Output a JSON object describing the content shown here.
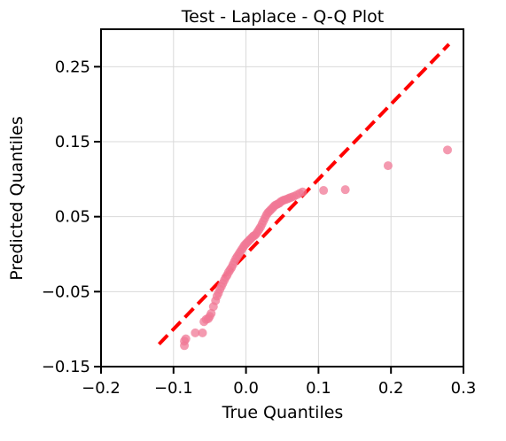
{
  "chart_data": {
    "type": "scatter",
    "title": "Test - Laplace - Q-Q Plot",
    "xlabel": "True Quantiles",
    "ylabel": "Predicted Quantiles",
    "xlim": [
      -0.2,
      0.3
    ],
    "ylim": [
      -0.15,
      0.3
    ],
    "xticks": [
      -0.2,
      -0.1,
      0.0,
      0.1,
      0.2,
      0.3
    ],
    "xtick_labels": [
      "−0.2",
      "−0.1",
      "0.0",
      "0.1",
      "0.2",
      "0.3"
    ],
    "yticks": [
      -0.15,
      -0.05,
      0.05,
      0.15,
      0.25
    ],
    "ytick_labels": [
      "−0.15",
      "−0.05",
      "0.05",
      "0.15",
      "0.25"
    ],
    "grid": true,
    "colors": {
      "points": "#f07896",
      "reference_line": "#ff0000"
    },
    "reference_line": {
      "x": [
        -0.12,
        0.28
      ],
      "y": [
        -0.12,
        0.28
      ]
    },
    "series": [
      {
        "x": [
          -0.085,
          -0.085,
          -0.083,
          -0.07,
          -0.06,
          -0.058,
          -0.055,
          -0.052,
          -0.05,
          -0.048,
          -0.045,
          -0.042,
          -0.04,
          -0.038,
          -0.036,
          -0.034,
          -0.032,
          -0.03,
          -0.028,
          -0.026,
          -0.024,
          -0.022,
          -0.02,
          -0.018,
          -0.016,
          -0.014,
          -0.012,
          -0.01,
          -0.008,
          -0.006,
          -0.004,
          -0.002,
          0.0,
          0.002,
          0.004,
          0.006,
          0.008,
          0.01,
          0.012,
          0.014,
          0.016,
          0.018,
          0.02,
          0.022,
          0.024,
          0.026,
          0.028,
          0.03,
          0.032,
          0.034,
          0.036,
          0.038,
          0.04,
          0.042,
          0.044,
          0.046,
          0.048,
          0.05,
          0.052,
          0.055,
          0.058,
          0.06,
          0.063,
          0.066,
          0.07,
          0.074,
          0.078,
          0.107,
          0.137,
          0.196,
          0.278
        ],
        "y": [
          -0.122,
          -0.116,
          -0.113,
          -0.105,
          -0.105,
          -0.09,
          -0.087,
          -0.086,
          -0.083,
          -0.079,
          -0.07,
          -0.062,
          -0.056,
          -0.052,
          -0.047,
          -0.043,
          -0.039,
          -0.035,
          -0.031,
          -0.028,
          -0.024,
          -0.021,
          -0.018,
          -0.014,
          -0.01,
          -0.006,
          -0.003,
          0.0,
          0.003,
          0.006,
          0.009,
          0.012,
          0.014,
          0.016,
          0.018,
          0.02,
          0.022,
          0.024,
          0.025,
          0.027,
          0.03,
          0.033,
          0.036,
          0.04,
          0.044,
          0.048,
          0.052,
          0.055,
          0.057,
          0.059,
          0.061,
          0.063,
          0.065,
          0.066,
          0.067,
          0.068,
          0.07,
          0.071,
          0.072,
          0.073,
          0.074,
          0.075,
          0.076,
          0.077,
          0.079,
          0.081,
          0.083,
          0.085,
          0.086,
          0.118,
          0.139
        ]
      }
    ]
  }
}
